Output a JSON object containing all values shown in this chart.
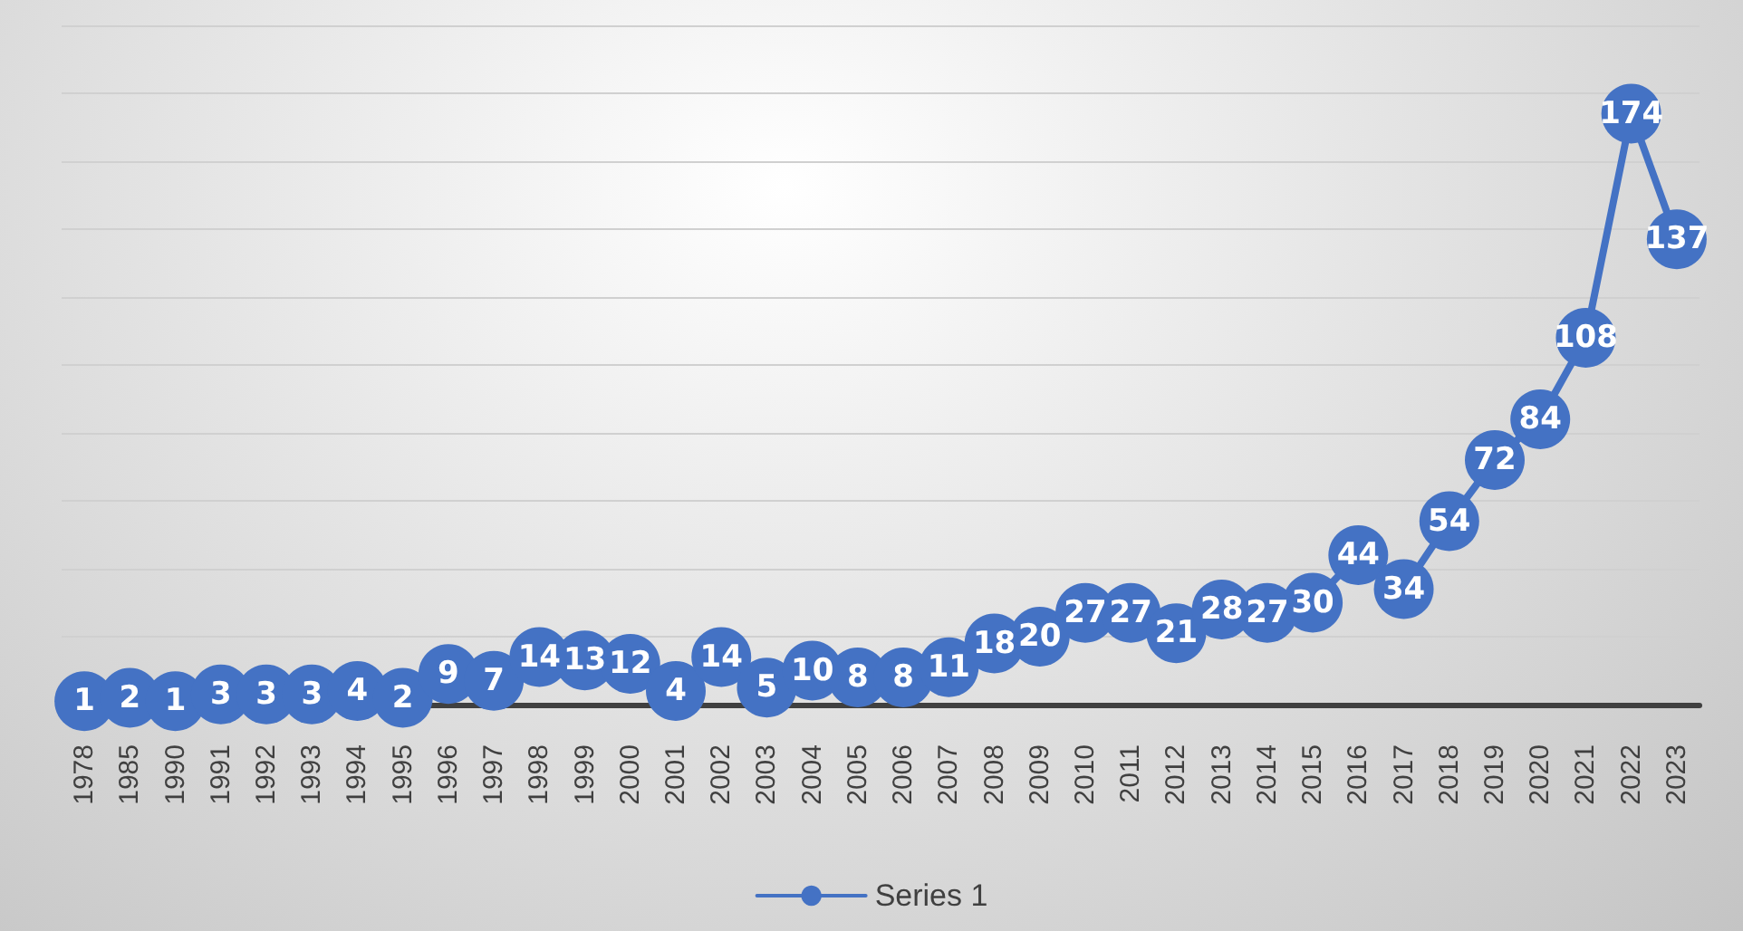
{
  "chart_data": {
    "type": "line",
    "categories": [
      "1978",
      "1985",
      "1990",
      "1991",
      "1992",
      "1993",
      "1994",
      "1995",
      "1996",
      "1997",
      "1998",
      "1999",
      "2000",
      "2001",
      "2002",
      "2003",
      "2004",
      "2005",
      "2006",
      "2007",
      "2008",
      "2009",
      "2010",
      "2011",
      "2012",
      "2013",
      "2014",
      "2015",
      "2016",
      "2017",
      "2018",
      "2019",
      "2020",
      "2021",
      "2022",
      "2023"
    ],
    "series": [
      {
        "name": "Series 1",
        "color": "#4472c4",
        "values": [
          1,
          2,
          1,
          3,
          3,
          3,
          4,
          2,
          9,
          7,
          14,
          13,
          12,
          4,
          14,
          5,
          10,
          8,
          8,
          11,
          18,
          20,
          27,
          27,
          21,
          28,
          27,
          30,
          44,
          34,
          54,
          72,
          84,
          108,
          174,
          137
        ]
      }
    ],
    "ylim": [
      0,
      200
    ],
    "yticks": [
      {
        "value": 0,
        "label": null
      },
      {
        "value": 20,
        "label": null
      },
      {
        "value": 40,
        "label": null
      },
      {
        "value": 60,
        "label": null
      },
      {
        "value": 80,
        "label": null
      },
      {
        "value": 100,
        "label": null
      },
      {
        "value": 120,
        "label": null
      },
      {
        "value": 140,
        "label": null
      },
      {
        "value": 160,
        "label": null
      },
      {
        "value": 180,
        "label": null
      },
      {
        "value": 200,
        "label": null
      }
    ],
    "tick_labels": "x",
    "grid": "y",
    "legend": "bottom",
    "marker": "circle",
    "line_style": "solid",
    "data_labels": true
  }
}
